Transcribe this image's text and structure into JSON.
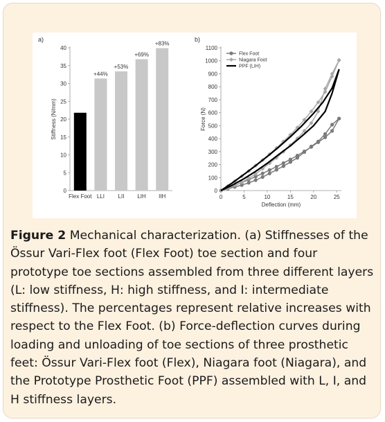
{
  "caption": {
    "label": "Figure 2",
    "text": "Mechanical characterization. (a) Stiffnesses of the Össur Vari-Flex foot (Flex Foot) toe section and four prototype toe sections assembled from three different layers (L: low stiffness, H: high stiffness, and I: intermediate stiffness). The percentages represent relative increases with respect to the Flex Foot. (b) Force-deflection curves during loading and unloading of toe sections of three prosthetic feet: Össur Vari-Flex foot (Flex), Niagara foot (Niagara), and the Prototype Prosthetic Foot (PPF) assembled with L, I, and H stiffness layers."
  },
  "chart_data": [
    {
      "panel": "a)",
      "type": "bar",
      "ylabel": "Stiffness (N/mm)",
      "ylim": [
        0,
        40
      ],
      "yticks": [
        "0",
        "5",
        "10",
        "15",
        "20",
        "25",
        "30",
        "35",
        "40"
      ],
      "categories": [
        "Flex Foot",
        "LLI",
        "LII",
        "LIH",
        "IIH"
      ],
      "values": [
        21.8,
        31.4,
        33.4,
        36.8,
        39.9
      ],
      "bar_labels": [
        "",
        "+44%",
        "+53%",
        "+69%",
        "+83%"
      ],
      "colors": [
        "#000000",
        "#c8c8c8",
        "#c8c8c8",
        "#c8c8c8",
        "#c8c8c8"
      ]
    },
    {
      "panel": "b)",
      "type": "line",
      "xlabel": "Deflection (mm)",
      "ylabel": "Force (N)",
      "xlim": [
        0,
        26
      ],
      "ylim": [
        0,
        1100
      ],
      "xticks": [
        "0",
        "5",
        "10",
        "15",
        "20",
        "25"
      ],
      "yticks": [
        "0",
        "100",
        "200",
        "300",
        "400",
        "500",
        "600",
        "700",
        "800",
        "900",
        "1000",
        "1100"
      ],
      "legend_position": "top-left",
      "series": [
        {
          "name": "Flex Foot",
          "color": "#7a7a7a",
          "marker": "circle",
          "loading": [
            [
              0,
              0
            ],
            [
              1.5,
              20
            ],
            [
              3,
              40
            ],
            [
              4.5,
              62
            ],
            [
              6,
              84
            ],
            [
              7.5,
              108
            ],
            [
              9,
              132
            ],
            [
              10.5,
              158
            ],
            [
              12,
              184
            ],
            [
              13.5,
              212
            ],
            [
              15,
              240
            ],
            [
              16.5,
              270
            ],
            [
              18,
              302
            ],
            [
              19.5,
              336
            ],
            [
              21,
              372
            ],
            [
              22.5,
              410
            ],
            [
              24,
              460
            ],
            [
              25.5,
              555
            ]
          ],
          "unloading": [
            [
              25.5,
              555
            ],
            [
              24,
              508
            ],
            [
              22.5,
              436
            ],
            [
              21,
              378
            ],
            [
              19.5,
              340
            ],
            [
              18,
              296
            ],
            [
              16.5,
              252
            ],
            [
              15,
              220
            ],
            [
              13.5,
              188
            ],
            [
              12,
              160
            ],
            [
              10.5,
              132
            ],
            [
              9,
              104
            ],
            [
              7.5,
              80
            ],
            [
              6,
              60
            ],
            [
              4.5,
              42
            ],
            [
              3,
              28
            ],
            [
              1.5,
              14
            ],
            [
              0,
              0
            ]
          ]
        },
        {
          "name": "Niagara Foot",
          "color": "#a8a8a8",
          "marker": "diamond",
          "loading": [
            [
              0,
              0
            ],
            [
              1.5,
              35
            ],
            [
              3,
              72
            ],
            [
              4.5,
              110
            ],
            [
              6,
              150
            ],
            [
              7.5,
              192
            ],
            [
              9,
              235
            ],
            [
              10.5,
              280
            ],
            [
              12,
              328
            ],
            [
              13.5,
              378
            ],
            [
              15,
              430
            ],
            [
              16.5,
              485
            ],
            [
              18,
              545
            ],
            [
              19.5,
              610
            ],
            [
              21,
              680
            ],
            [
              22.5,
              760
            ],
            [
              24,
              880
            ],
            [
              25.5,
              1005
            ]
          ],
          "unloading": [
            [
              25.5,
              1005
            ],
            [
              24,
              900
            ],
            [
              22.5,
              785
            ],
            [
              21,
              610
            ],
            [
              19.5,
              520
            ],
            [
              18,
              460
            ],
            [
              16.5,
              402
            ],
            [
              15,
              350
            ],
            [
              13.5,
              300
            ],
            [
              12,
              252
            ],
            [
              10.5,
              210
            ],
            [
              9,
              168
            ],
            [
              7.5,
              128
            ],
            [
              6,
              94
            ],
            [
              4.5,
              64
            ],
            [
              3,
              40
            ],
            [
              1.5,
              18
            ],
            [
              0,
              0
            ]
          ]
        },
        {
          "name": "PPF (LIH)",
          "color": "#000000",
          "marker": "none",
          "loading": [
            [
              0,
              0
            ],
            [
              2.5,
              60
            ],
            [
              5,
              125
            ],
            [
              7.5,
              192
            ],
            [
              10,
              262
            ],
            [
              12.5,
              336
            ],
            [
              15,
              415
            ],
            [
              17.5,
              500
            ],
            [
              20,
              595
            ],
            [
              22,
              680
            ],
            [
              24,
              790
            ],
            [
              25.5,
              935
            ]
          ],
          "unloading": [
            [
              25.5,
              935
            ],
            [
              24,
              750
            ],
            [
              22.5,
              610
            ],
            [
              20,
              500
            ],
            [
              17.5,
              420
            ],
            [
              15,
              345
            ],
            [
              12.5,
              278
            ],
            [
              10,
              210
            ],
            [
              7.5,
              148
            ],
            [
              5,
              92
            ],
            [
              2.5,
              42
            ],
            [
              0,
              0
            ]
          ]
        }
      ]
    }
  ]
}
